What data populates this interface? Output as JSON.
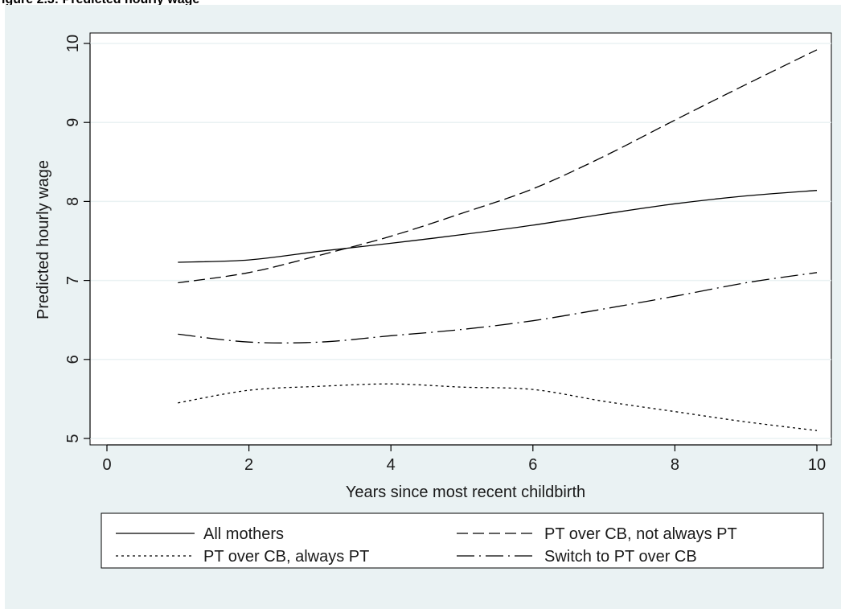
{
  "figure_title": "igure 2.3: Predicted hourly wage",
  "colors": {
    "background": "#eaf2f3",
    "plot_area": "#ffffff",
    "grid": "#eaf2f3",
    "lines": "#000000"
  },
  "chart_data": {
    "type": "line",
    "title": "",
    "xlabel": "Years since most recent childbirth",
    "ylabel": "Predicted hourly wage",
    "xlim": [
      0,
      10
    ],
    "ylim": [
      5,
      10
    ],
    "xticks": [
      0,
      2,
      4,
      6,
      8,
      10
    ],
    "yticks": [
      5,
      6,
      7,
      8,
      9,
      10
    ],
    "grid": "horizontal",
    "legend_position": "bottom",
    "legend_columns": 2,
    "x": [
      1,
      2,
      3,
      4,
      5,
      6,
      7,
      8,
      9,
      10
    ],
    "series": [
      {
        "name": "All mothers",
        "dash": "solid",
        "values": [
          7.23,
          7.26,
          7.37,
          7.47,
          7.58,
          7.7,
          7.84,
          7.97,
          8.07,
          8.14
        ]
      },
      {
        "name": "PT over CB, not always PT",
        "dash": "dashed",
        "values": [
          6.97,
          7.1,
          7.32,
          7.56,
          7.85,
          8.16,
          8.57,
          9.03,
          9.48,
          9.92
        ]
      },
      {
        "name": "PT over CB, always PT",
        "dash": "dotted",
        "values": [
          5.45,
          5.61,
          5.66,
          5.69,
          5.65,
          5.62,
          5.47,
          5.34,
          5.21,
          5.1
        ]
      },
      {
        "name": "Switch to PT over CB",
        "dash": "longdash-dot",
        "values": [
          6.32,
          6.22,
          6.22,
          6.3,
          6.38,
          6.49,
          6.64,
          6.8,
          6.97,
          7.1
        ]
      }
    ]
  }
}
